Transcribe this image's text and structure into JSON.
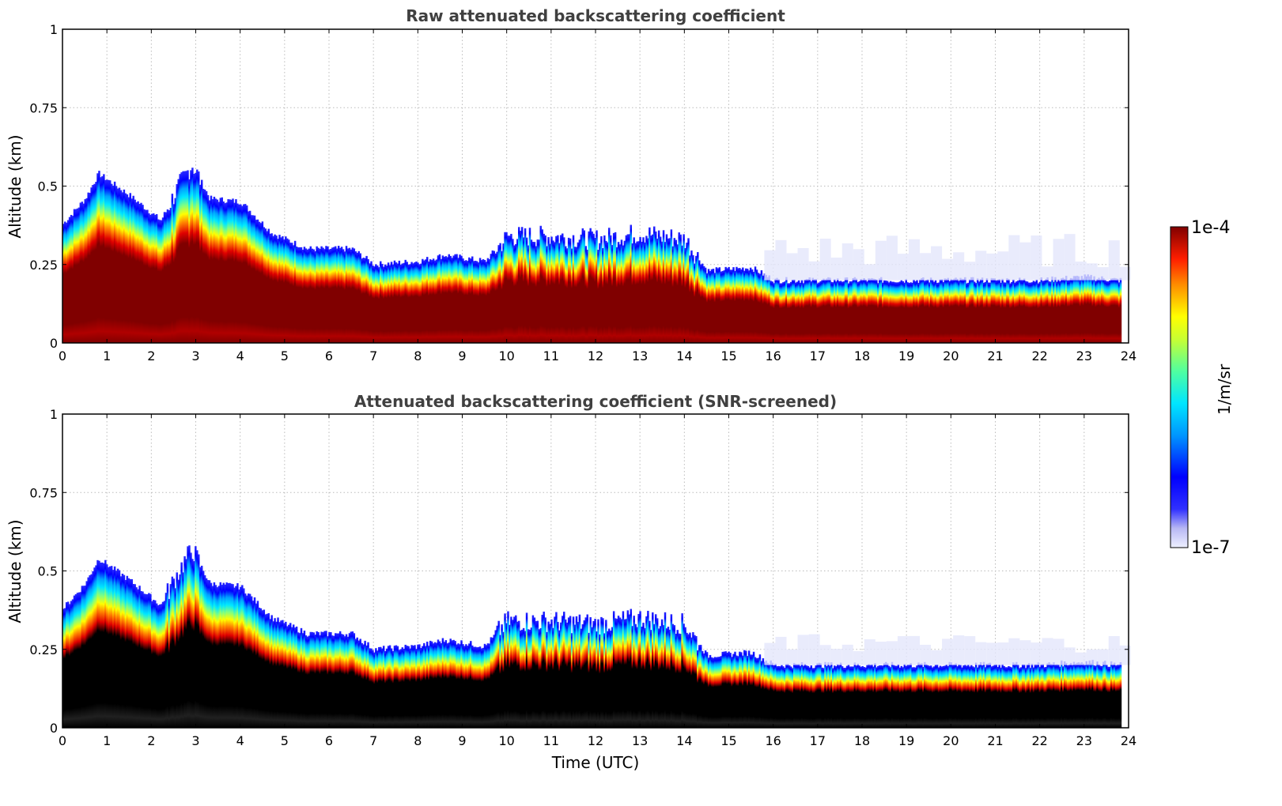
{
  "chart_data": [
    {
      "type": "heatmap",
      "title": "Raw attenuated backscattering coefficient",
      "xlabel": "",
      "ylabel": "Altitude (km)",
      "xlim": [
        0,
        24
      ],
      "ylim": [
        0,
        1
      ],
      "x_ticks": [
        "0",
        "1",
        "2",
        "3",
        "4",
        "5",
        "6",
        "7",
        "8",
        "9",
        "10",
        "11",
        "12",
        "13",
        "14",
        "15",
        "16",
        "17",
        "18",
        "19",
        "20",
        "21",
        "22",
        "23",
        "24"
      ],
      "y_ticks": [
        "0",
        "0.25",
        "0.5",
        "0.75",
        "1"
      ],
      "grid": true,
      "colormap": "jet",
      "color_range": [
        1e-07,
        0.0001
      ],
      "layer_top_km": {
        "x": [
          0,
          0.5,
          0.8,
          1.5,
          2.2,
          2.6,
          2.9,
          3.3,
          4.0,
          4.7,
          5.5,
          6.5,
          7.0,
          8.0,
          8.6,
          9.5,
          10.0,
          11.0,
          12.0,
          13.0,
          14.0,
          14.5,
          15.5,
          16.0,
          17.0,
          18.0,
          19.0,
          20.0,
          21.0,
          22.0,
          23.0,
          23.8
        ],
        "y": [
          0.38,
          0.46,
          0.54,
          0.47,
          0.39,
          0.5,
          0.57,
          0.46,
          0.45,
          0.35,
          0.3,
          0.3,
          0.25,
          0.26,
          0.28,
          0.26,
          0.34,
          0.34,
          0.33,
          0.35,
          0.33,
          0.23,
          0.24,
          0.2,
          0.2,
          0.2,
          0.2,
          0.2,
          0.2,
          0.2,
          0.21,
          0.2
        ]
      }
    },
    {
      "type": "heatmap",
      "title": "Attenuated backscattering coefficient (SNR-screened)",
      "xlabel": "Time (UTC)",
      "ylabel": "Altitude (km)",
      "xlim": [
        0,
        24
      ],
      "ylim": [
        0,
        1
      ],
      "x_ticks": [
        "0",
        "1",
        "2",
        "3",
        "4",
        "5",
        "6",
        "7",
        "8",
        "9",
        "10",
        "11",
        "12",
        "13",
        "14",
        "15",
        "16",
        "17",
        "18",
        "19",
        "20",
        "21",
        "22",
        "23",
        "24"
      ],
      "y_ticks": [
        "0",
        "0.25",
        "0.5",
        "0.75",
        "1"
      ],
      "grid": true,
      "colormap": "jet",
      "color_range": [
        1e-07,
        0.0001
      ],
      "layer_top_km": {
        "x": [
          0,
          0.5,
          0.8,
          1.5,
          2.2,
          2.6,
          2.9,
          3.3,
          4.0,
          4.7,
          5.5,
          6.5,
          7.0,
          8.0,
          8.6,
          9.5,
          10.0,
          11.0,
          12.0,
          13.0,
          14.0,
          14.5,
          15.5,
          16.0,
          17.0,
          18.0,
          19.0,
          20.0,
          21.0,
          22.0,
          23.0,
          23.8
        ],
        "y": [
          0.38,
          0.46,
          0.54,
          0.47,
          0.39,
          0.5,
          0.57,
          0.46,
          0.45,
          0.35,
          0.3,
          0.3,
          0.25,
          0.26,
          0.28,
          0.26,
          0.34,
          0.34,
          0.33,
          0.35,
          0.33,
          0.23,
          0.24,
          0.2,
          0.2,
          0.2,
          0.2,
          0.2,
          0.2,
          0.2,
          0.21,
          0.2
        ]
      }
    }
  ],
  "colorbar": {
    "max_label": "1e-4",
    "min_label": "1e-7",
    "label": "1/m/sr"
  }
}
